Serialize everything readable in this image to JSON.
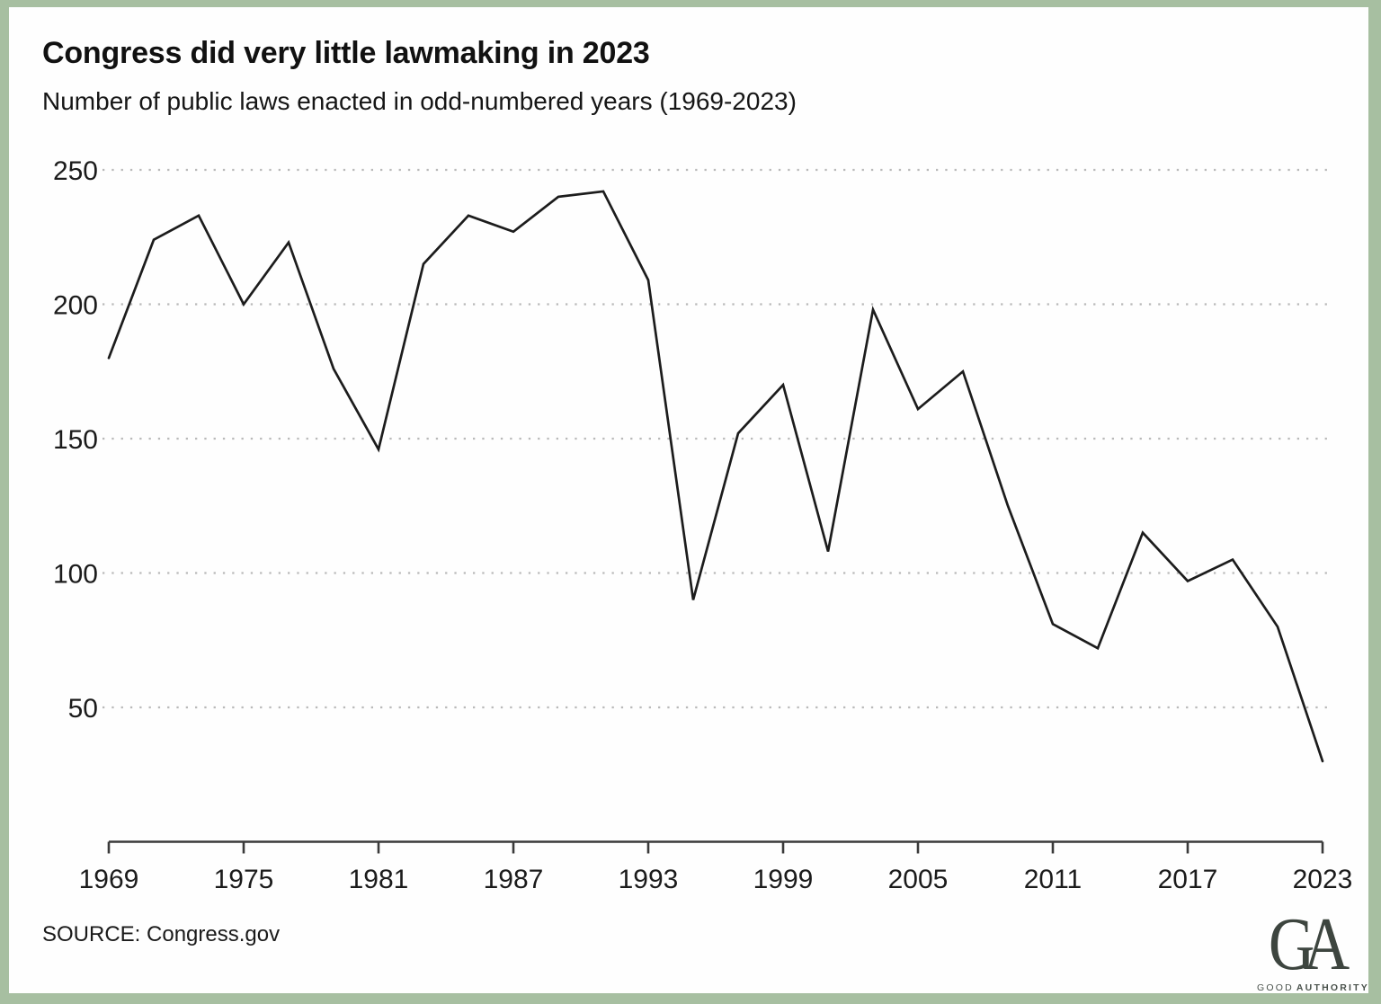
{
  "header": {
    "title": "Congress did very little lawmaking in 2023",
    "subtitle": "Number of public laws enacted in odd-numbered years (1969-2023)"
  },
  "footer": {
    "source": "SOURCE: Congress.gov",
    "logo": {
      "mark": "GA",
      "word1": "GOOD",
      "word2": "AUTHORITY"
    }
  },
  "colors": {
    "frame_green": "#a7bfa1",
    "background": "#fefefe",
    "line": "#1c1c1c",
    "gridline": "#b9b9b9",
    "axis": "#3a3a3a",
    "text": "#111111",
    "logo": "#3d453f"
  },
  "chart_data": {
    "type": "line",
    "title": "Congress did very little lawmaking in 2023",
    "subtitle": "Number of public laws enacted in odd-numbered years (1969-2023)",
    "source": "SOURCE: Congress.gov",
    "xlabel": "",
    "ylabel": "",
    "x": [
      1969,
      1971,
      1973,
      1975,
      1977,
      1979,
      1981,
      1983,
      1985,
      1987,
      1989,
      1991,
      1993,
      1995,
      1997,
      1999,
      2001,
      2003,
      2005,
      2007,
      2009,
      2011,
      2013,
      2015,
      2017,
      2019,
      2021,
      2023
    ],
    "values": [
      180,
      224,
      233,
      200,
      223,
      176,
      146,
      215,
      233,
      227,
      240,
      242,
      209,
      90,
      152,
      170,
      108,
      198,
      161,
      175,
      125,
      81,
      72,
      115,
      97,
      105,
      80,
      30
    ],
    "series_name": "Public laws enacted",
    "x_tick_labels": [
      "1969",
      "1975",
      "1981",
      "1987",
      "1993",
      "1999",
      "2005",
      "2011",
      "2017",
      "2023"
    ],
    "y_ticks": [
      50,
      100,
      150,
      200,
      250
    ],
    "xlim": [
      1969,
      2023
    ],
    "ylim": [
      0,
      250
    ],
    "grid": "horizontal dotted",
    "legend_position": "none"
  }
}
